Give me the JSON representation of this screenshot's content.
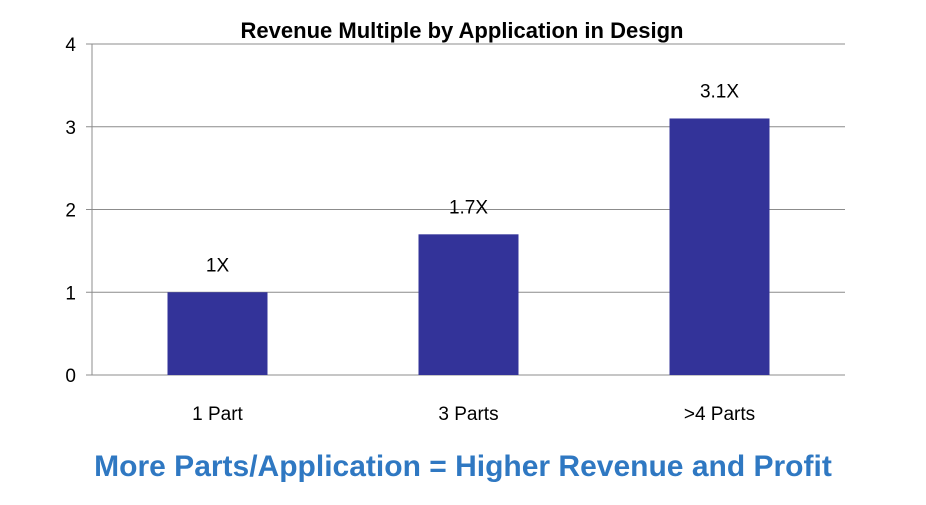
{
  "chart_data": {
    "type": "bar",
    "title": "Revenue Multiple by Application in Design",
    "categories": [
      "1 Part",
      "3 Parts",
      ">4 Parts"
    ],
    "values": [
      1,
      1.7,
      3.1
    ],
    "data_labels": [
      "1X",
      "1.7X",
      "3.1X"
    ],
    "yticks": [
      "0",
      "1",
      "2",
      "3",
      "4"
    ],
    "ylim": [
      0,
      4
    ],
    "grid": true,
    "bar_color": "#333399"
  },
  "caption": {
    "text": "More Parts/Application = Higher Revenue and Profit",
    "color": "#2F78C2"
  }
}
